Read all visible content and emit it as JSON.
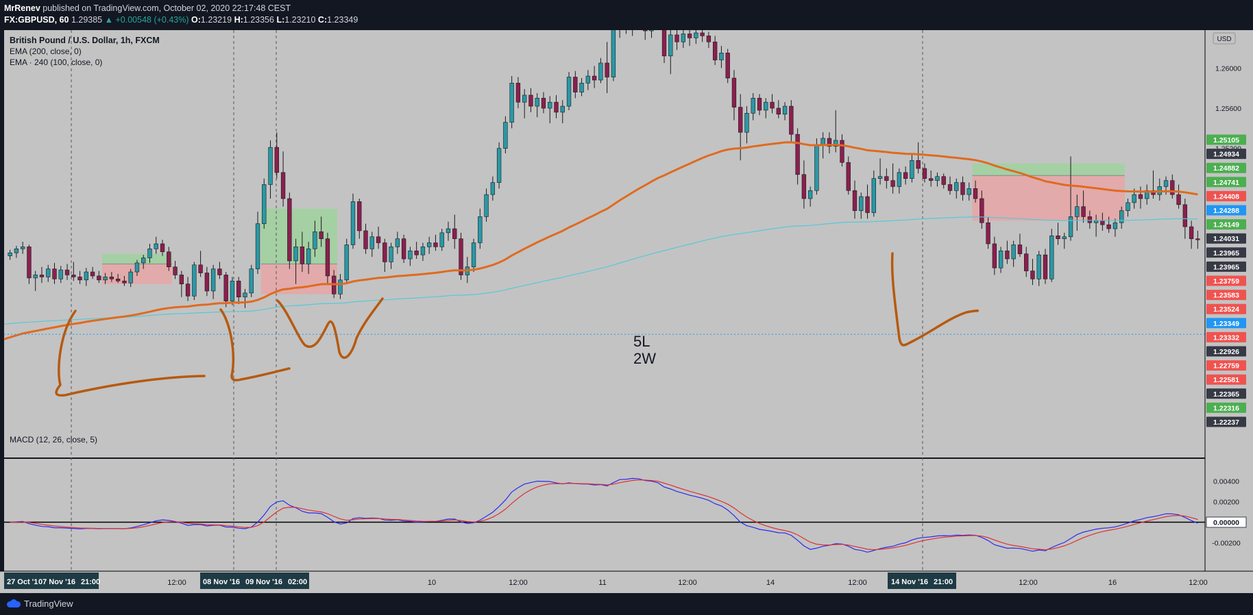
{
  "header": {
    "publisher": "MrRenev",
    "published_text": "published on TradingView.com, October 02, 2020 22:17:48 CEST",
    "symbol": "FX:GBPUSD, 60",
    "last": "1.29385",
    "change_arrow": "▲",
    "change": "+0.00548 (+0.43%)",
    "o_label": "O:",
    "o": "1.23219",
    "h_label": "H:",
    "h": "1.23356",
    "l_label": "L:",
    "l": "1.23210",
    "c_label": "C:",
    "c": "1.23349"
  },
  "legend": {
    "main_title": "British Pound / U.S. Dollar, 1h, FXCM",
    "ema1": "EMA (200, close, 0)",
    "ema2": "EMA · 240 (100, close, 0)",
    "macd": "MACD (12, 26, close, 5)",
    "currency": "USD"
  },
  "annotation": {
    "line1": "5L",
    "line2": "2W"
  },
  "footer": {
    "brand": "TradingView"
  },
  "colors": {
    "background": "#c3c3c3",
    "bull": "#2a98a6",
    "bear": "#8b1f4f",
    "ema200": "#e06a1f",
    "ema240": "#56c8d8",
    "macd": "#2a2af0",
    "signal": "#e03030",
    "drawing": "#b65a10",
    "tp_zone": "#9fd29f",
    "sl_zone": "#e7a6a6"
  },
  "chart_data": {
    "type": "candlestick",
    "symbol": "GBPUSD",
    "timeframe": "1h",
    "ylim": [
      1.2215,
      1.2635
    ],
    "price_scale_ticks": [
      1.252,
      1.256,
      1.26
    ],
    "price_labels": [
      {
        "value": "1.25105",
        "color": "#4caf50"
      },
      {
        "value": "1.24934",
        "color": "#363a45"
      },
      {
        "value": "1.24882",
        "color": "#4caf50"
      },
      {
        "value": "1.24741",
        "color": "#4caf50"
      },
      {
        "value": "1.24408",
        "color": "#ef5350"
      },
      {
        "value": "1.24288",
        "color": "#2196f3"
      },
      {
        "value": "1.24149",
        "color": "#4caf50"
      },
      {
        "value": "1.24031",
        "color": "#363a45"
      },
      {
        "value": "1.23965",
        "color": "#363a45"
      },
      {
        "value": "1.23965",
        "color": "#363a45"
      },
      {
        "value": "1.23759",
        "color": "#ef5350"
      },
      {
        "value": "1.23583",
        "color": "#ef5350"
      },
      {
        "value": "1.23524",
        "color": "#ef5350"
      },
      {
        "value": "1.23349",
        "color": "#2196f3"
      },
      {
        "value": "1.23332",
        "color": "#ef5350"
      },
      {
        "value": "1.22926",
        "color": "#363a45"
      },
      {
        "value": "1.22759",
        "color": "#ef5350"
      },
      {
        "value": "1.22581",
        "color": "#ef5350"
      },
      {
        "value": "1.22365",
        "color": "#363a45"
      },
      {
        "value": "1.22316",
        "color": "#4caf50"
      },
      {
        "value": "1.22237",
        "color": "#363a45"
      }
    ],
    "time_labels": [
      "12:00",
      "10",
      "12:00",
      "11",
      "12:00",
      "14",
      "12:00",
      "12:00",
      "16",
      "12:00"
    ],
    "time_label_highlights": [
      "27 Oct '1",
      "07 Nov '16",
      "21:00",
      "08 Nov '16",
      "09 Nov '16",
      "02:00",
      "14 Nov '16",
      "21:00"
    ],
    "ohlc": [
      [
        1.2413,
        1.2419,
        1.2409,
        1.2416
      ],
      [
        1.2416,
        1.2423,
        1.2411,
        1.242
      ],
      [
        1.242,
        1.2427,
        1.2415,
        1.2422
      ],
      [
        1.2422,
        1.2424,
        1.2385,
        1.2391
      ],
      [
        1.2391,
        1.2398,
        1.2378,
        1.2394
      ],
      [
        1.2394,
        1.2402,
        1.2386,
        1.2392
      ],
      [
        1.2392,
        1.2404,
        1.2387,
        1.24
      ],
      [
        1.24,
        1.2406,
        1.2385,
        1.239
      ],
      [
        1.239,
        1.2403,
        1.2386,
        1.2399
      ],
      [
        1.2399,
        1.2405,
        1.2389,
        1.2394
      ],
      [
        1.2394,
        1.2407,
        1.2388,
        1.2392
      ],
      [
        1.2392,
        1.2398,
        1.2385,
        1.2389
      ],
      [
        1.2389,
        1.2401,
        1.2383,
        1.2397
      ],
      [
        1.2397,
        1.2402,
        1.239,
        1.2393
      ],
      [
        1.2393,
        1.2398,
        1.2386,
        1.2389
      ],
      [
        1.2389,
        1.2396,
        1.2385,
        1.2392
      ],
      [
        1.2392,
        1.2397,
        1.2387,
        1.239
      ],
      [
        1.239,
        1.2395,
        1.2386,
        1.2388
      ],
      [
        1.2388,
        1.2393,
        1.2383,
        1.2386
      ],
      [
        1.2386,
        1.24,
        1.2382,
        1.2397
      ],
      [
        1.2397,
        1.2409,
        1.2393,
        1.2406
      ],
      [
        1.2406,
        1.2414,
        1.24,
        1.2411
      ],
      [
        1.2411,
        1.2425,
        1.2406,
        1.242
      ],
      [
        1.242,
        1.2432,
        1.2415,
        1.2425
      ],
      [
        1.2425,
        1.2429,
        1.2413,
        1.2417
      ],
      [
        1.2417,
        1.2422,
        1.2398,
        1.2402
      ],
      [
        1.2402,
        1.2408,
        1.239,
        1.2394
      ],
      [
        1.2394,
        1.2398,
        1.2372,
        1.2385
      ],
      [
        1.2385,
        1.2392,
        1.2368,
        1.2373
      ],
      [
        1.2373,
        1.2407,
        1.2369,
        1.2404
      ],
      [
        1.2404,
        1.2418,
        1.2392,
        1.2396
      ],
      [
        1.2396,
        1.2402,
        1.2373,
        1.2378
      ],
      [
        1.2378,
        1.2404,
        1.237,
        1.24
      ],
      [
        1.24,
        1.2407,
        1.239,
        1.2394
      ],
      [
        1.2394,
        1.2397,
        1.2362,
        1.2368
      ],
      [
        1.2368,
        1.2392,
        1.2364,
        1.2388
      ],
      [
        1.2388,
        1.2392,
        1.2365,
        1.2372
      ],
      [
        1.2372,
        1.238,
        1.2361,
        1.2376
      ],
      [
        1.2376,
        1.2404,
        1.2372,
        1.24
      ],
      [
        1.24,
        1.2457,
        1.2395,
        1.2445
      ],
      [
        1.2445,
        1.249,
        1.244,
        1.2484
      ],
      [
        1.2484,
        1.2528,
        1.247,
        1.2521
      ],
      [
        1.2521,
        1.2536,
        1.249,
        1.2496
      ],
      [
        1.2496,
        1.2517,
        1.2462,
        1.247
      ],
      [
        1.247,
        1.2476,
        1.24,
        1.2408
      ],
      [
        1.2408,
        1.243,
        1.2385,
        1.2422
      ],
      [
        1.2422,
        1.2437,
        1.2397,
        1.2405
      ],
      [
        1.2405,
        1.2427,
        1.2395,
        1.242
      ],
      [
        1.242,
        1.2448,
        1.2412,
        1.2437
      ],
      [
        1.2437,
        1.2452,
        1.2422,
        1.243
      ],
      [
        1.243,
        1.2436,
        1.2385,
        1.2393
      ],
      [
        1.2393,
        1.2399,
        1.2371,
        1.2375
      ],
      [
        1.2375,
        1.2395,
        1.237,
        1.2389
      ],
      [
        1.2389,
        1.243,
        1.2385,
        1.2424
      ],
      [
        1.2424,
        1.2475,
        1.242,
        1.2467
      ],
      [
        1.2467,
        1.247,
        1.243,
        1.2438
      ],
      [
        1.2438,
        1.2445,
        1.2415,
        1.242
      ],
      [
        1.242,
        1.2437,
        1.2412,
        1.2432
      ],
      [
        1.2432,
        1.2442,
        1.242,
        1.2426
      ],
      [
        1.2426,
        1.243,
        1.2397,
        1.2407
      ],
      [
        1.2407,
        1.2426,
        1.24,
        1.2422
      ],
      [
        1.2422,
        1.2437,
        1.2415,
        1.243
      ],
      [
        1.243,
        1.2434,
        1.2406,
        1.241
      ],
      [
        1.241,
        1.2422,
        1.2403,
        1.2418
      ],
      [
        1.2418,
        1.2427,
        1.241,
        1.2414
      ],
      [
        1.2414,
        1.2426,
        1.2408,
        1.2422
      ],
      [
        1.2422,
        1.2432,
        1.2415,
        1.2426
      ],
      [
        1.2426,
        1.2434,
        1.2418,
        1.2422
      ],
      [
        1.2422,
        1.244,
        1.2418,
        1.2436
      ],
      [
        1.2436,
        1.2447,
        1.2428,
        1.244
      ],
      [
        1.244,
        1.2454,
        1.242,
        1.243
      ],
      [
        1.243,
        1.2436,
        1.2389,
        1.2394
      ],
      [
        1.2394,
        1.2412,
        1.2386,
        1.2402
      ],
      [
        1.2402,
        1.243,
        1.2397,
        1.2426
      ],
      [
        1.2426,
        1.246,
        1.242,
        1.2452
      ],
      [
        1.2452,
        1.248,
        1.2447,
        1.2474
      ],
      [
        1.2474,
        1.2492,
        1.2468,
        1.2486
      ],
      [
        1.2486,
        1.2526,
        1.248,
        1.252
      ],
      [
        1.252,
        1.2552,
        1.2515,
        1.2546
      ],
      [
        1.2546,
        1.2592,
        1.254,
        1.2585
      ],
      [
        1.2585,
        1.2591,
        1.256,
        1.2566
      ],
      [
        1.2566,
        1.2579,
        1.255,
        1.2573
      ],
      [
        1.2573,
        1.258,
        1.2556,
        1.2562
      ],
      [
        1.2562,
        1.2575,
        1.2551,
        1.257
      ],
      [
        1.257,
        1.2576,
        1.2555,
        1.256
      ],
      [
        1.256,
        1.2572,
        1.2545,
        1.2566
      ],
      [
        1.2566,
        1.2573,
        1.255,
        1.2556
      ],
      [
        1.2556,
        1.2568,
        1.2545,
        1.2562
      ],
      [
        1.2562,
        1.2596,
        1.2558,
        1.2591
      ],
      [
        1.2591,
        1.2597,
        1.257,
        1.2576
      ],
      [
        1.2576,
        1.259,
        1.2572,
        1.2585
      ],
      [
        1.2585,
        1.2598,
        1.2578,
        1.2592
      ],
      [
        1.2592,
        1.2602,
        1.258,
        1.2588
      ],
      [
        1.2588,
        1.261,
        1.2585,
        1.2605
      ],
      [
        1.2605,
        1.2626,
        1.2575,
        1.2591
      ],
      [
        1.2591,
        1.2656,
        1.2587,
        1.265
      ],
      [
        1.265,
        1.2672,
        1.263,
        1.2661
      ],
      [
        1.2661,
        1.2667,
        1.2634,
        1.264
      ],
      [
        1.264,
        1.2662,
        1.2632,
        1.2655
      ],
      [
        1.2655,
        1.2668,
        1.264,
        1.2647
      ],
      [
        1.2647,
        1.2658,
        1.2628,
        1.2637
      ],
      [
        1.2637,
        1.2654,
        1.263,
        1.265
      ],
      [
        1.265,
        1.2662,
        1.2638,
        1.2644
      ],
      [
        1.2644,
        1.2651,
        1.2605,
        1.2612
      ],
      [
        1.2612,
        1.264,
        1.2594,
        1.2633
      ],
      [
        1.2633,
        1.2644,
        1.2618,
        1.2626
      ],
      [
        1.2626,
        1.2638,
        1.262,
        1.2634
      ],
      [
        1.2634,
        1.2638,
        1.2622,
        1.263
      ],
      [
        1.263,
        1.2638,
        1.2624,
        1.2635
      ],
      [
        1.2635,
        1.2641,
        1.2626,
        1.2632
      ],
      [
        1.2632,
        1.2636,
        1.262,
        1.2626
      ],
      [
        1.2626,
        1.2632,
        1.2603,
        1.2608
      ],
      [
        1.2608,
        1.2622,
        1.26,
        1.2615
      ],
      [
        1.2615,
        1.2619,
        1.2585,
        1.259
      ],
      [
        1.259,
        1.2598,
        1.2548,
        1.2561
      ],
      [
        1.2561,
        1.2574,
        1.2508,
        1.2536
      ],
      [
        1.2536,
        1.2562,
        1.2525,
        1.2555
      ],
      [
        1.2555,
        1.2575,
        1.2548,
        1.257
      ],
      [
        1.257,
        1.2574,
        1.2553,
        1.2558
      ],
      [
        1.2558,
        1.257,
        1.255,
        1.2566
      ],
      [
        1.2566,
        1.2574,
        1.2555,
        1.256
      ],
      [
        1.256,
        1.2568,
        1.255,
        1.2554
      ],
      [
        1.2554,
        1.2566,
        1.2548,
        1.2562
      ],
      [
        1.2562,
        1.2568,
        1.2527,
        1.2534
      ],
      [
        1.2534,
        1.254,
        1.2484,
        1.2494
      ],
      [
        1.2494,
        1.2508,
        1.246,
        1.247
      ],
      [
        1.247,
        1.2482,
        1.2462,
        1.2478
      ],
      [
        1.2478,
        1.253,
        1.2474,
        1.2523
      ],
      [
        1.2523,
        1.2536,
        1.251,
        1.253
      ],
      [
        1.253,
        1.2536,
        1.2515,
        1.2522
      ],
      [
        1.2522,
        1.2558,
        1.2516,
        1.2528
      ],
      [
        1.2528,
        1.2534,
        1.2502,
        1.2506
      ],
      [
        1.2506,
        1.2512,
        1.2474,
        1.2478
      ],
      [
        1.2478,
        1.2488,
        1.245,
        1.2458
      ],
      [
        1.2458,
        1.2476,
        1.245,
        1.2472
      ],
      [
        1.2472,
        1.2484,
        1.245,
        1.2456
      ],
      [
        1.2456,
        1.2498,
        1.2452,
        1.249
      ],
      [
        1.249,
        1.251,
        1.2484,
        1.2492
      ],
      [
        1.2492,
        1.25,
        1.248,
        1.2488
      ],
      [
        1.2488,
        1.2505,
        1.2475,
        1.2482
      ],
      [
        1.2482,
        1.25,
        1.2475,
        1.2496
      ],
      [
        1.2496,
        1.2502,
        1.2484,
        1.249
      ],
      [
        1.249,
        1.2514,
        1.2486,
        1.2508
      ],
      [
        1.2508,
        1.2526,
        1.2495,
        1.25
      ],
      [
        1.25,
        1.2505,
        1.2486,
        1.249
      ],
      [
        1.249,
        1.2498,
        1.2482,
        1.2488
      ],
      [
        1.2488,
        1.2496,
        1.2482,
        1.2492
      ],
      [
        1.2492,
        1.2495,
        1.248,
        1.2484
      ],
      [
        1.2484,
        1.2492,
        1.2474,
        1.2478
      ],
      [
        1.2478,
        1.249,
        1.247,
        1.2486
      ],
      [
        1.2486,
        1.2492,
        1.2468,
        1.2474
      ],
      [
        1.2474,
        1.2486,
        1.2468,
        1.248
      ],
      [
        1.248,
        1.2488,
        1.2466,
        1.247
      ],
      [
        1.247,
        1.2478,
        1.244,
        1.2446
      ],
      [
        1.2446,
        1.2452,
        1.242,
        1.2425
      ],
      [
        1.2425,
        1.2432,
        1.2394,
        1.2401
      ],
      [
        1.2401,
        1.2422,
        1.2396,
        1.2418
      ],
      [
        1.2418,
        1.2428,
        1.2405,
        1.241
      ],
      [
        1.241,
        1.2428,
        1.2402,
        1.2424
      ],
      [
        1.2424,
        1.2435,
        1.2412,
        1.2415
      ],
      [
        1.2415,
        1.2422,
        1.2392,
        1.2398
      ],
      [
        1.2398,
        1.241,
        1.2384,
        1.239
      ],
      [
        1.239,
        1.2418,
        1.2383,
        1.2414
      ],
      [
        1.2414,
        1.242,
        1.2385,
        1.239
      ],
      [
        1.239,
        1.244,
        1.2387,
        1.2433
      ],
      [
        1.2433,
        1.2446,
        1.2424,
        1.243
      ],
      [
        1.243,
        1.2436,
        1.242,
        1.2432
      ],
      [
        1.2432,
        1.2512,
        1.2428,
        1.2452
      ],
      [
        1.2452,
        1.2474,
        1.2438,
        1.2462
      ],
      [
        1.2462,
        1.2478,
        1.2446,
        1.2452
      ],
      [
        1.2452,
        1.2458,
        1.244,
        1.2446
      ],
      [
        1.2446,
        1.2454,
        1.2432,
        1.2448
      ],
      [
        1.2448,
        1.2456,
        1.2438,
        1.2444
      ],
      [
        1.2444,
        1.2452,
        1.2436,
        1.244
      ],
      [
        1.244,
        1.245,
        1.2432,
        1.2446
      ],
      [
        1.2446,
        1.2462,
        1.244,
        1.2458
      ],
      [
        1.2458,
        1.247,
        1.2452,
        1.2466
      ],
      [
        1.2466,
        1.248,
        1.246,
        1.2474
      ],
      [
        1.2474,
        1.2482,
        1.246,
        1.247
      ],
      [
        1.247,
        1.2484,
        1.2464,
        1.2478
      ],
      [
        1.2478,
        1.2498,
        1.247,
        1.2474
      ],
      [
        1.2474,
        1.249,
        1.2468,
        1.2482
      ],
      [
        1.2482,
        1.2492,
        1.2474,
        1.2488
      ],
      [
        1.2488,
        1.2494,
        1.247,
        1.2474
      ],
      [
        1.2474,
        1.2484,
        1.246,
        1.2464
      ],
      [
        1.2464,
        1.247,
        1.243,
        1.2442
      ],
      [
        1.2442,
        1.2448,
        1.242,
        1.243
      ],
      [
        1.243,
        1.2438,
        1.242,
        1.2429
      ]
    ],
    "series": [
      {
        "name": "EMA (200, close, 0)",
        "color": "#e06a1f"
      },
      {
        "name": "EMA · 240 (100, close, 0)",
        "color": "#56c8d8"
      }
    ],
    "horizontal_line": 1.23349,
    "macd": {
      "ylim": [
        -0.0045,
        0.0055
      ],
      "ticks": [
        "0.00400",
        "0.00200",
        "0.00000",
        "-0.00200"
      ],
      "zero_label": "0.00000"
    },
    "positions": [
      {
        "type": "long",
        "entry": 1.2405,
        "stop": 1.2385,
        "target": 1.2415
      },
      {
        "type": "long",
        "entry": 1.2405,
        "stop": 1.2375,
        "target": 1.246
      },
      {
        "type": "short",
        "entry": 1.2493,
        "stop": 1.2448,
        "target": 1.2505
      }
    ]
  }
}
